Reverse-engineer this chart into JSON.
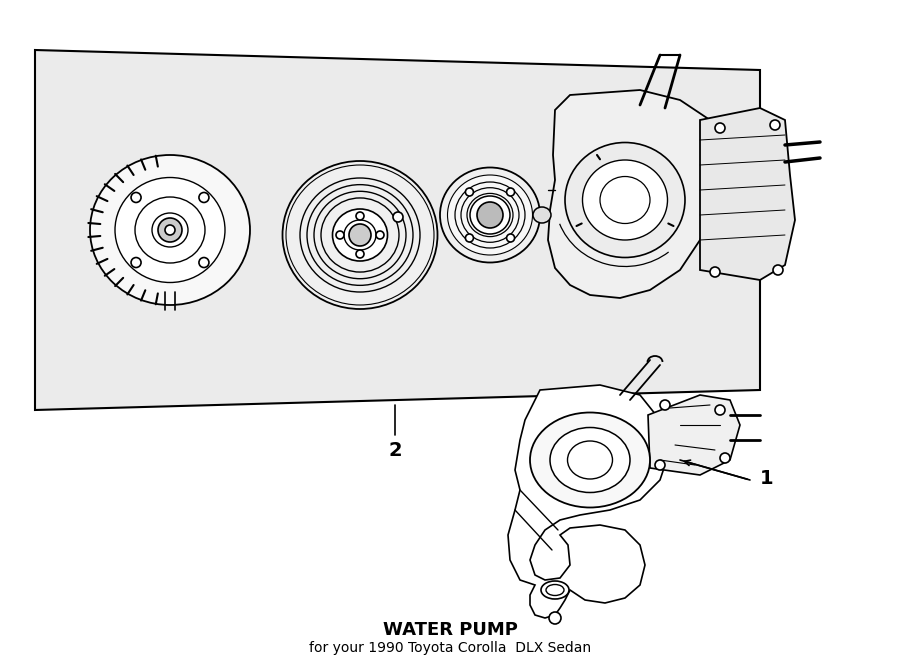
{
  "title": "WATER PUMP",
  "subtitle": "for your 1990 Toyota Corolla  DLX Sedan",
  "background_color": "#ffffff",
  "box_background": "#f0f0f0",
  "line_color": "#000000",
  "label_1": "1",
  "label_2": "2",
  "fig_width": 9.0,
  "fig_height": 6.61,
  "dpi": 100
}
